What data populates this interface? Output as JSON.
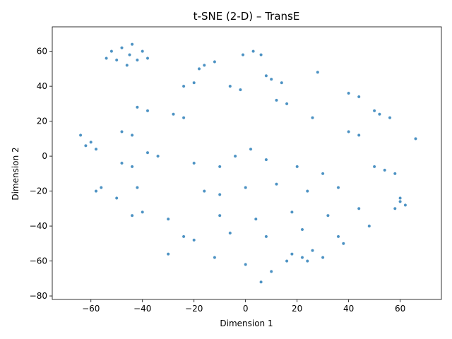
{
  "chart_data": {
    "type": "scatter",
    "title": "t-SNE (2-D) – TransE",
    "xlabel": "Dimension 1",
    "ylabel": "Dimension 2",
    "xlim": [
      -75,
      76
    ],
    "ylim": [
      -82,
      74
    ],
    "xticks": [
      -60,
      -40,
      -20,
      0,
      20,
      40,
      60
    ],
    "yticks": [
      -80,
      -60,
      -40,
      -20,
      0,
      20,
      40,
      60
    ],
    "grid": false,
    "legend": "none",
    "point_color": "#1f77b4",
    "series": [
      {
        "description_points_note": "",
        "points": [
          [
            -52,
            60
          ],
          [
            -48,
            62
          ],
          [
            -45,
            58
          ],
          [
            -42,
            55
          ],
          [
            -50,
            55
          ],
          [
            -46,
            52
          ],
          [
            -40,
            60
          ],
          [
            -38,
            56
          ],
          [
            -54,
            56
          ],
          [
            -44,
            64
          ],
          [
            -16,
            52
          ],
          [
            -12,
            54
          ],
          [
            -18,
            50
          ],
          [
            3,
            60
          ],
          [
            6,
            58
          ],
          [
            -1,
            58
          ],
          [
            10,
            44
          ],
          [
            14,
            42
          ],
          [
            8,
            46
          ],
          [
            28,
            48
          ],
          [
            -24,
            40
          ],
          [
            -20,
            42
          ],
          [
            -6,
            40
          ],
          [
            -2,
            38
          ],
          [
            40,
            36
          ],
          [
            44,
            34
          ],
          [
            -42,
            28
          ],
          [
            -38,
            26
          ],
          [
            16,
            30
          ],
          [
            12,
            32
          ],
          [
            52,
            24
          ],
          [
            56,
            22
          ],
          [
            50,
            26
          ],
          [
            -28,
            24
          ],
          [
            -24,
            22
          ],
          [
            26,
            22
          ],
          [
            -48,
            14
          ],
          [
            -44,
            12
          ],
          [
            40,
            14
          ],
          [
            44,
            12
          ],
          [
            -62,
            6
          ],
          [
            -58,
            4
          ],
          [
            -60,
            8
          ],
          [
            -38,
            2
          ],
          [
            -34,
            0
          ],
          [
            -48,
            -4
          ],
          [
            -44,
            -6
          ],
          [
            2,
            4
          ],
          [
            -4,
            0
          ],
          [
            8,
            -2
          ],
          [
            -10,
            -6
          ],
          [
            -20,
            -4
          ],
          [
            20,
            -6
          ],
          [
            30,
            -10
          ],
          [
            54,
            -8
          ],
          [
            58,
            -10
          ],
          [
            50,
            -6
          ],
          [
            -42,
            -18
          ],
          [
            -56,
            -18
          ],
          [
            -58,
            -20
          ],
          [
            -16,
            -20
          ],
          [
            -10,
            -22
          ],
          [
            0,
            -18
          ],
          [
            12,
            -16
          ],
          [
            24,
            -20
          ],
          [
            36,
            -18
          ],
          [
            60,
            -26
          ],
          [
            62,
            -28
          ],
          [
            58,
            -30
          ],
          [
            60,
            -24
          ],
          [
            -44,
            -34
          ],
          [
            -40,
            -32
          ],
          [
            -30,
            -36
          ],
          [
            -10,
            -34
          ],
          [
            4,
            -36
          ],
          [
            18,
            -32
          ],
          [
            32,
            -34
          ],
          [
            44,
            -30
          ],
          [
            -24,
            -46
          ],
          [
            -20,
            -48
          ],
          [
            -6,
            -44
          ],
          [
            8,
            -46
          ],
          [
            22,
            -42
          ],
          [
            36,
            -46
          ],
          [
            18,
            -56
          ],
          [
            22,
            -58
          ],
          [
            26,
            -54
          ],
          [
            24,
            -60
          ],
          [
            16,
            -60
          ],
          [
            30,
            -58
          ],
          [
            -30,
            -56
          ],
          [
            -12,
            -58
          ],
          [
            0,
            -62
          ],
          [
            10,
            -66
          ],
          [
            6,
            -72
          ],
          [
            38,
            -50
          ],
          [
            48,
            -40
          ],
          [
            -50,
            -24
          ],
          [
            -64,
            12
          ],
          [
            66,
            10
          ]
        ]
      }
    ]
  }
}
